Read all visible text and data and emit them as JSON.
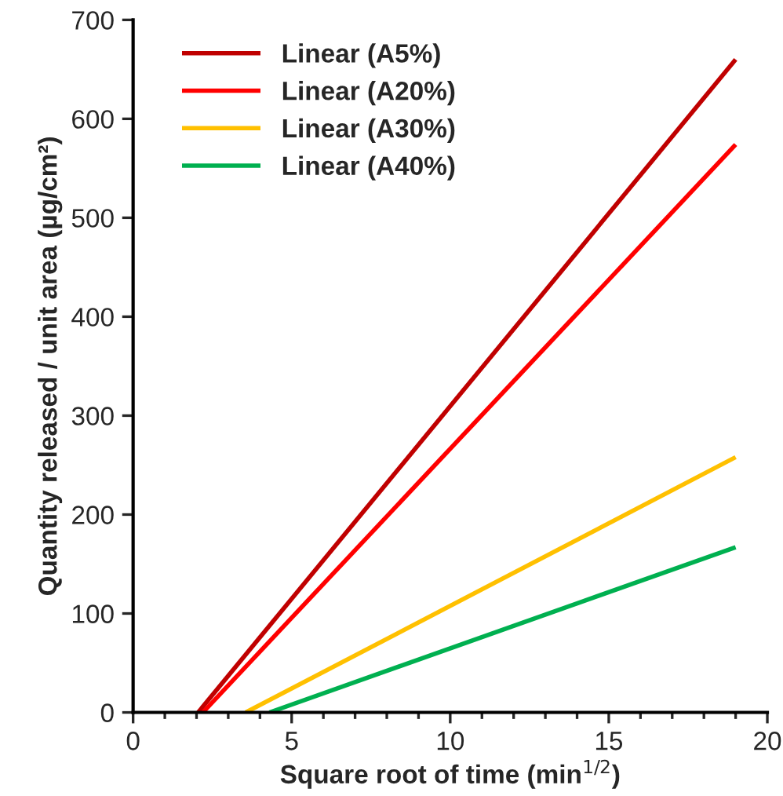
{
  "chart_data": {
    "type": "line",
    "xlabel": "Square root of time (min$^{1/2}$)",
    "ylabel": "Quantity released / unit area (µg/cm²)",
    "xlim": [
      0,
      20
    ],
    "xticks": [
      0,
      5,
      10,
      15,
      20
    ],
    "ylim": [
      0,
      700
    ],
    "yticks": [
      0,
      100,
      200,
      300,
      400,
      500,
      600,
      700
    ],
    "grid": false,
    "legend": "top left",
    "marker": "none",
    "line_style": "solid",
    "series": [
      {
        "name": "Linear (A5%)",
        "color": "#c00000",
        "x": [
          2.05,
          19
        ],
        "values": [
          0,
          660
        ]
      },
      {
        "name": "Linear (A20%)",
        "color": "#ff0000",
        "x": [
          2.2,
          19
        ],
        "values": [
          0,
          574
        ]
      },
      {
        "name": "Linear (A30%)",
        "color": "#ffc000",
        "x": [
          3.55,
          19
        ],
        "values": [
          0,
          258
        ]
      },
      {
        "name": "Linear (A40%)",
        "color": "#00b050",
        "x": [
          4.3,
          19
        ],
        "values": [
          0,
          167
        ]
      }
    ]
  }
}
